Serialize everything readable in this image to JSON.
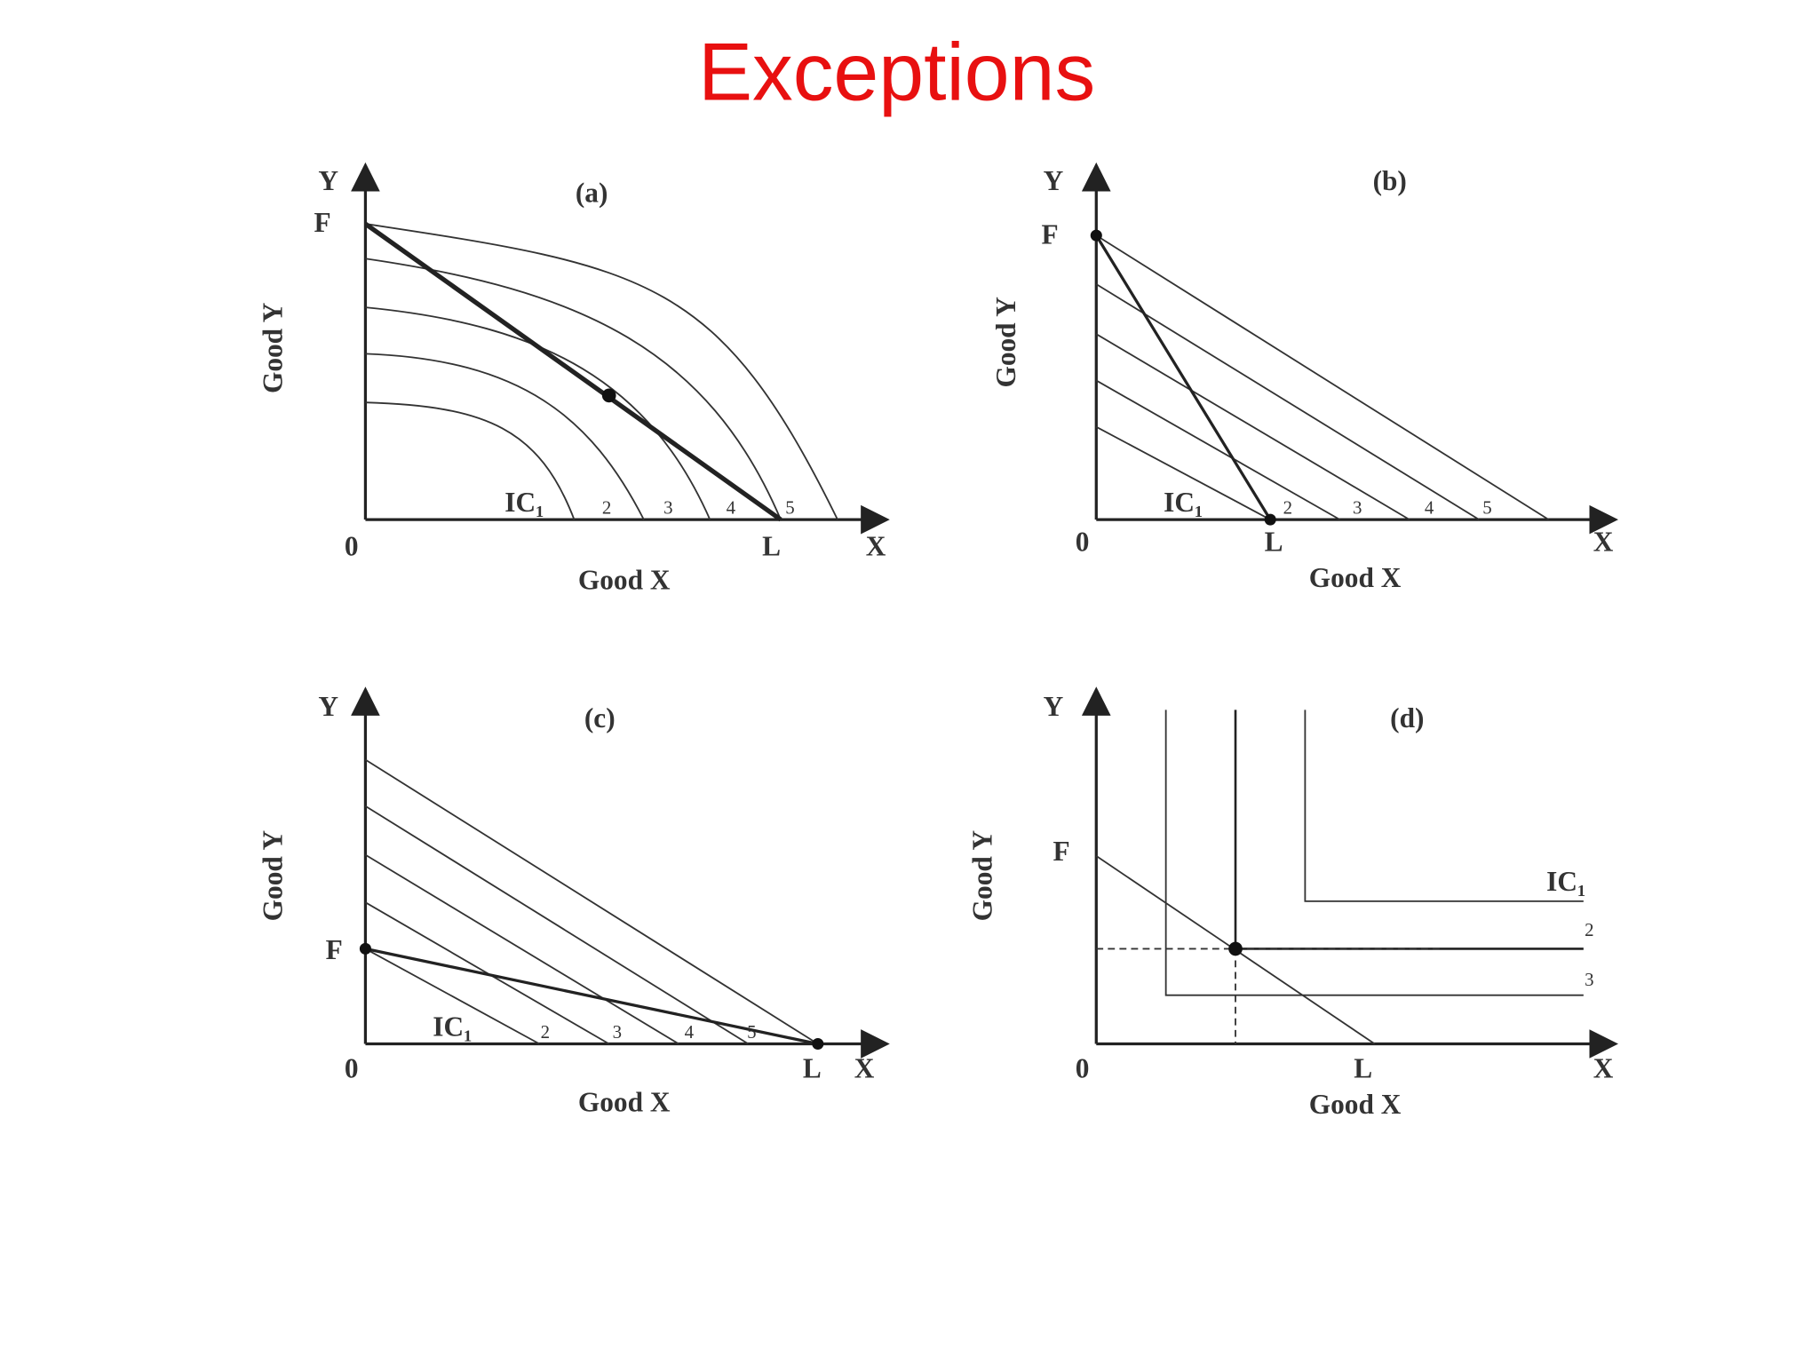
{
  "title": "Exceptions",
  "panels": [
    {
      "label": "(a)",
      "y_axis": "Y",
      "x_axis": "X",
      "origin": "0",
      "y_title": "Good Y",
      "x_title": "Good X",
      "budget_start": "F",
      "budget_end": "L",
      "curve_labels": [
        "IC₁",
        "2",
        "3",
        "4",
        "5"
      ]
    },
    {
      "label": "(b)",
      "y_axis": "Y",
      "x_axis": "X",
      "origin": "0",
      "y_title": "Good Y",
      "x_title": "Good X",
      "budget_start": "F",
      "budget_end": "L",
      "curve_labels": [
        "IC₁",
        "2",
        "3",
        "4",
        "5"
      ]
    },
    {
      "label": "(c)",
      "y_axis": "Y",
      "x_axis": "X",
      "origin": "0",
      "y_title": "Good Y",
      "x_title": "Good X",
      "budget_start": "F",
      "budget_end": "L",
      "curve_labels": [
        "IC₁",
        "2",
        "3",
        "4",
        "5"
      ]
    },
    {
      "label": "(d)",
      "y_axis": "Y",
      "x_axis": "X",
      "origin": "0",
      "y_title": "Good Y",
      "x_title": "Good X",
      "budget_start": "F",
      "budget_end": "L",
      "curve_labels": [
        "IC₁",
        "2",
        "3"
      ]
    }
  ]
}
